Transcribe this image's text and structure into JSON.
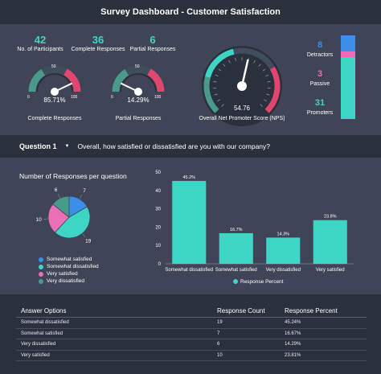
{
  "header": {
    "title": "Survey Dashboard - Customer Satisfaction"
  },
  "kpis": {
    "participants": {
      "value": "42",
      "label": "No. of Participants"
    },
    "complete": {
      "value": "36",
      "label": "Complete Responses"
    },
    "partial": {
      "value": "6",
      "label": "Partial Responses"
    }
  },
  "gauges": {
    "complete": {
      "pct_text": "85.71%",
      "label": "Complete Responses",
      "value": 85.71,
      "tick_min": "0",
      "tick_mid": "50",
      "tick_max": "100"
    },
    "partial": {
      "pct_text": "14.29%",
      "label": "Partial Responses",
      "value": 14.29,
      "tick_min": "0",
      "tick_mid": "50",
      "tick_max": "100"
    },
    "nps": {
      "value_text": "54.76",
      "label": "Overall Net Promoter Score (NPS)",
      "value": 54.76
    }
  },
  "nps_breakdown": {
    "detractors": {
      "value": "8",
      "label": "Detractors",
      "color": "#3b8fe8"
    },
    "passive": {
      "value": "3",
      "label": "Passive",
      "color": "#e96fb6"
    },
    "promoters": {
      "value": "31",
      "label": "Promoters",
      "color": "#3dd6c5"
    },
    "bar_fractions": {
      "detractors": 0.19,
      "passive": 0.07,
      "promoters": 0.74
    }
  },
  "question": {
    "number": "Question 1",
    "text": "Overall, how satisfied or dissatisfied are you with our company?"
  },
  "colors": {
    "somewhat_satisfied": "#3b8fe8",
    "somewhat_dissatisfied": "#3dd6c5",
    "very_satisfied": "#e96fb6",
    "very_dissatisfied": "#4a9a8c",
    "teal": "#3dd6c5"
  },
  "chart_data": [
    {
      "type": "pie",
      "title": "Number of Responses per question",
      "labels": [
        "Somewhat satisfied",
        "Somewhat dissatisfied",
        "Very satisfied",
        "Very dissatisfied"
      ],
      "values": [
        7,
        19,
        10,
        6
      ],
      "legend": "bottom-left"
    },
    {
      "type": "bar",
      "categories": [
        "Somewhat dissatisfied",
        "Somewhat satisfied",
        "Very dissatisfied",
        "Very satisfied"
      ],
      "series": [
        {
          "name": "Response Percent",
          "values": [
            45.2,
            16.7,
            14.3,
            23.8
          ]
        }
      ],
      "data_labels": [
        "45.2%",
        "16.7%",
        "14.3%",
        "23.8%"
      ],
      "yticks": [
        "0",
        "10",
        "20",
        "30",
        "40",
        "50"
      ],
      "ylim": [
        0,
        50
      ],
      "grid": false,
      "legend": "bottom"
    }
  ],
  "table": {
    "headers": [
      "Answer Options",
      "Response Count",
      "Response Percent"
    ],
    "rows": [
      [
        "Somewhat dissatisfied",
        "19",
        "45.24%"
      ],
      [
        "Somewhat satisfied",
        "7",
        "16.67%"
      ],
      [
        "Very dissatisfied",
        "6",
        "14.29%"
      ],
      [
        "Very satisfied",
        "10",
        "23.81%"
      ]
    ]
  }
}
